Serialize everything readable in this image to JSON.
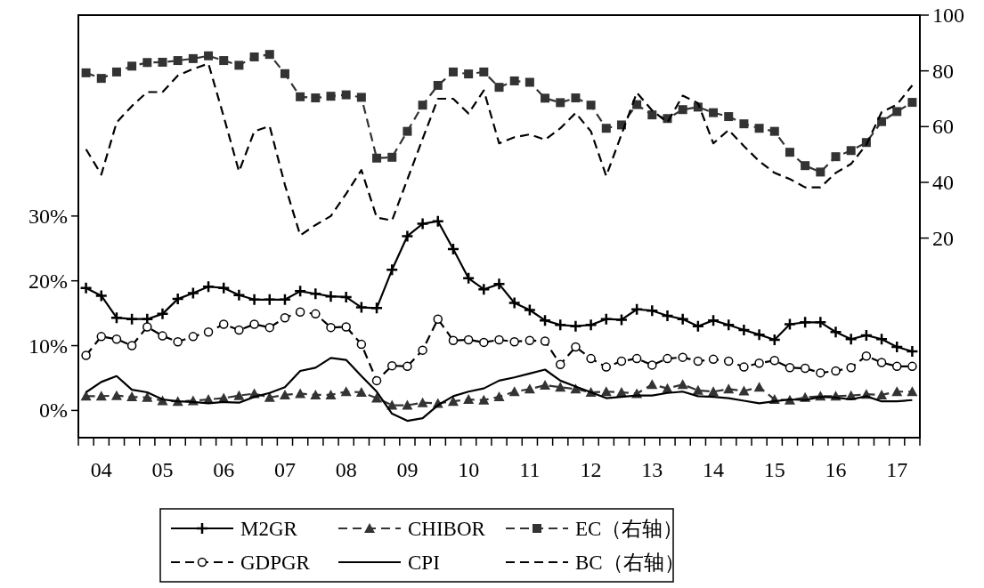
{
  "chart_data": {
    "type": "line",
    "categories": [
      null,
      "04",
      null,
      null,
      null,
      "05",
      null,
      null,
      null,
      "06",
      null,
      null,
      null,
      "07",
      null,
      null,
      null,
      "08",
      null,
      null,
      null,
      "09",
      null,
      null,
      null,
      "10",
      null,
      null,
      null,
      "11",
      null,
      null,
      null,
      "12",
      null,
      null,
      null,
      "13",
      null,
      null,
      null,
      "14",
      null,
      null,
      null,
      "15",
      null,
      null,
      null,
      "16",
      null,
      null,
      null,
      "17",
      null
    ],
    "series": [
      {
        "name": "M2GR",
        "color": "#000000",
        "marker": "cross",
        "line_style": "solid",
        "values": [
          18.9,
          17.7,
          14.3,
          14.1,
          14.1,
          14.9,
          17.2,
          18.1,
          19.1,
          18.9,
          17.8,
          17.1,
          17.1,
          17.1,
          18.4,
          18.0,
          17.6,
          17.5,
          15.9,
          15.8,
          21.7,
          26.9,
          28.8,
          29.2,
          24.9,
          20.4,
          18.7,
          19.5,
          16.6,
          15.5,
          13.9,
          13.2,
          13.0,
          13.2,
          14.1,
          14.0,
          15.6,
          15.4,
          14.6,
          14.1,
          13.0,
          13.9,
          13.2,
          12.4,
          11.7,
          10.9,
          13.3,
          13.6,
          13.6,
          12.1,
          11.0,
          11.6,
          11.0,
          9.8,
          9.1
        ]
      },
      {
        "name": "CHIBOR",
        "color": "#333333",
        "marker": "triangle",
        "line_style": "dashed",
        "values": [
          2.2,
          2.2,
          2.3,
          2.1,
          2.0,
          1.5,
          1.4,
          1.5,
          1.7,
          1.9,
          2.3,
          2.6,
          2.0,
          2.4,
          2.6,
          2.4,
          2.4,
          2.9,
          2.8,
          1.9,
          0.8,
          0.8,
          1.2,
          1.1,
          1.4,
          1.7,
          1.6,
          2.1,
          2.9,
          3.3,
          3.9,
          3.6,
          3.3,
          2.8,
          2.9,
          2.8,
          2.6,
          4.0,
          3.4,
          4.0,
          3.1,
          2.9,
          3.3,
          3.0,
          3.6,
          1.7,
          1.6,
          2.0,
          2.2,
          2.2,
          2.3,
          2.5,
          2.4,
          2.9,
          2.9
        ]
      },
      {
        "name": "EC（右轴）",
        "color": "#333333",
        "marker": "square",
        "line_style": "dashed",
        "axis": "y2",
        "values": [
          79.3,
          77.3,
          79.6,
          81.7,
          83.0,
          83.1,
          83.7,
          84.4,
          85.4,
          83.7,
          82.0,
          85.0,
          85.9,
          79.0,
          70.7,
          70.3,
          70.9,
          71.4,
          70.5,
          48.7,
          49.0,
          58.3,
          67.7,
          74.8,
          79.6,
          78.9,
          79.6,
          74.1,
          76.4,
          75.9,
          70.2,
          68.6,
          70.3,
          67.7,
          59.4,
          60.6,
          67.9,
          64.2,
          62.9,
          66.1,
          67.0,
          65.0,
          63.6,
          61.0,
          59.4,
          58.3,
          50.8,
          46.0,
          43.7,
          49.2,
          51.4,
          54.3,
          61.8,
          65.4,
          68.7
        ]
      },
      {
        "name": "GDPGR",
        "color": "#000000",
        "marker": "circle",
        "line_style": "dashed",
        "values": [
          8.5,
          11.4,
          11.0,
          10.0,
          12.9,
          11.5,
          10.6,
          11.4,
          12.1,
          13.3,
          12.4,
          13.3,
          12.8,
          14.3,
          15.2,
          14.9,
          12.8,
          12.9,
          10.2,
          4.6,
          6.9,
          6.8,
          9.3,
          14.1,
          10.8,
          10.9,
          10.5,
          10.9,
          10.6,
          10.8,
          10.7,
          7.1,
          9.8,
          8.0,
          6.7,
          7.6,
          8.0,
          7.0,
          8.0,
          8.2,
          7.6,
          7.9,
          7.6,
          6.7,
          7.3,
          7.7,
          6.6,
          6.5,
          5.8,
          6.1,
          6.6,
          8.4,
          7.4,
          6.8,
          6.8
        ]
      },
      {
        "name": "CPI",
        "color": "#000000",
        "marker": "none",
        "line_style": "solid",
        "values": [
          2.8,
          4.4,
          5.3,
          3.2,
          2.8,
          1.7,
          1.4,
          1.3,
          1.1,
          1.3,
          1.2,
          2.1,
          2.7,
          3.6,
          6.1,
          6.6,
          8.1,
          7.8,
          5.3,
          2.9,
          -0.5,
          -1.6,
          -1.2,
          0.8,
          2.2,
          2.9,
          3.4,
          4.6,
          5.1,
          5.7,
          6.3,
          4.6,
          3.7,
          2.8,
          1.9,
          2.1,
          2.3,
          2.3,
          2.7,
          2.9,
          2.2,
          2.1,
          1.9,
          1.5,
          1.1,
          1.4,
          1.7,
          1.6,
          2.1,
          2.0,
          1.7,
          2.2,
          1.4,
          1.4,
          1.6
        ]
      },
      {
        "name": "BC（右轴）",
        "color": "#000000",
        "marker": "none",
        "line_style": "dashed",
        "axis": "y2",
        "values": [
          51.9,
          42.8,
          61.5,
          67.4,
          72.4,
          72.4,
          78.3,
          80.7,
          82.6,
          63.6,
          43.9,
          58.3,
          60.2,
          39.1,
          21.0,
          24.7,
          27.9,
          35.9,
          44.4,
          27.4,
          26.3,
          41.0,
          55.6,
          70.0,
          70.0,
          64.7,
          73.0,
          54.0,
          56.2,
          57.2,
          55.3,
          59.4,
          64.9,
          58.3,
          42.3,
          57.2,
          72.2,
          65.8,
          61.5,
          71.1,
          68.4,
          54.0,
          58.8,
          53.0,
          47.6,
          43.4,
          41.2,
          38.2,
          38.2,
          43.4,
          46.6,
          53.5,
          65.2,
          67.9,
          74.8
        ]
      }
    ],
    "ylim": [
      -4.2,
      61
    ],
    "yticks": [
      {
        "value": 0,
        "label": "0%"
      },
      {
        "value": 10,
        "label": "10%"
      },
      {
        "value": 20,
        "label": "20%"
      },
      {
        "value": 30,
        "label": "30%"
      }
    ],
    "y2lim": [
      -51.6,
      100
    ],
    "y2ticks": [
      20,
      40,
      60,
      80,
      100
    ],
    "legend": "bottom",
    "grid": false
  }
}
